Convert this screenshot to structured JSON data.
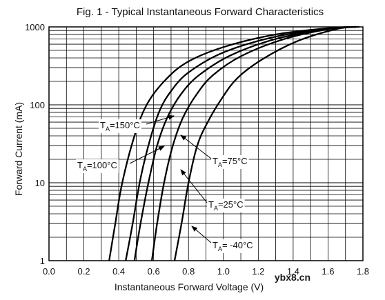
{
  "chart_data": {
    "type": "line",
    "title": "Fig. 1 - Typical Instantaneous Forward Characteristics",
    "xlabel": "Instantaneous Forward Voltage (V)",
    "ylabel": "Forward Current (mA)",
    "x_scale": "linear",
    "y_scale": "log",
    "xlim": [
      0.0,
      1.8
    ],
    "ylim": [
      1,
      1000
    ],
    "x_ticks": [
      "0.0",
      "0.2",
      "0.4",
      "0.6",
      "0.8",
      "1.0",
      "1.2",
      "1.4",
      "1.6",
      "1.8"
    ],
    "y_ticks": [
      "1",
      "10",
      "100",
      "1000"
    ],
    "grid": true,
    "series": [
      {
        "name": "TA=150°C",
        "label_prefix": "T",
        "label_sub": "A",
        "label_suffix": "=150°C",
        "points": [
          [
            0.345,
            1
          ],
          [
            0.38,
            3
          ],
          [
            0.42,
            10
          ],
          [
            0.49,
            40
          ],
          [
            0.56,
            100
          ],
          [
            0.66,
            200
          ],
          [
            0.79,
            350
          ],
          [
            1.0,
            550
          ],
          [
            1.3,
            800
          ],
          [
            1.62,
            970
          ],
          [
            1.78,
            1000
          ]
        ]
      },
      {
        "name": "TA=100°C",
        "label_prefix": "T",
        "label_sub": "A",
        "label_suffix": "=100°C",
        "points": [
          [
            0.44,
            1
          ],
          [
            0.48,
            3
          ],
          [
            0.52,
            10
          ],
          [
            0.57,
            30
          ],
          [
            0.63,
            80
          ],
          [
            0.7,
            150
          ],
          [
            0.8,
            260
          ],
          [
            1.0,
            470
          ],
          [
            1.3,
            750
          ],
          [
            1.62,
            960
          ],
          [
            1.76,
            1000
          ]
        ]
      },
      {
        "name": "TA=75°C",
        "label_prefix": "T",
        "label_sub": "A",
        "label_suffix": "=75°C",
        "points": [
          [
            0.49,
            1
          ],
          [
            0.525,
            3
          ],
          [
            0.57,
            10
          ],
          [
            0.62,
            30
          ],
          [
            0.68,
            70
          ],
          [
            0.76,
            140
          ],
          [
            0.86,
            240
          ],
          [
            1.04,
            430
          ],
          [
            1.3,
            700
          ],
          [
            1.6,
            940
          ],
          [
            1.75,
            1000
          ]
        ]
      },
      {
        "name": "TA=25°C",
        "label_prefix": "T",
        "label_sub": "A",
        "label_suffix": "=25°C",
        "points": [
          [
            0.59,
            1
          ],
          [
            0.62,
            3
          ],
          [
            0.66,
            10
          ],
          [
            0.71,
            30
          ],
          [
            0.77,
            70
          ],
          [
            0.85,
            140
          ],
          [
            0.94,
            240
          ],
          [
            1.1,
            420
          ],
          [
            1.35,
            700
          ],
          [
            1.62,
            950
          ],
          [
            1.76,
            1000
          ]
        ]
      },
      {
        "name": "TA=-40°C",
        "label_prefix": "T",
        "label_sub": "A",
        "label_suffix": "= -40°C",
        "points": [
          [
            0.72,
            1
          ],
          [
            0.76,
            3
          ],
          [
            0.8,
            10
          ],
          [
            0.85,
            30
          ],
          [
            0.91,
            60
          ],
          [
            0.99,
            120
          ],
          [
            1.08,
            220
          ],
          [
            1.22,
            380
          ],
          [
            1.42,
            650
          ],
          [
            1.64,
            930
          ],
          [
            1.76,
            1000
          ]
        ]
      }
    ]
  },
  "footer": {
    "watermark": "ybx8.cn"
  }
}
